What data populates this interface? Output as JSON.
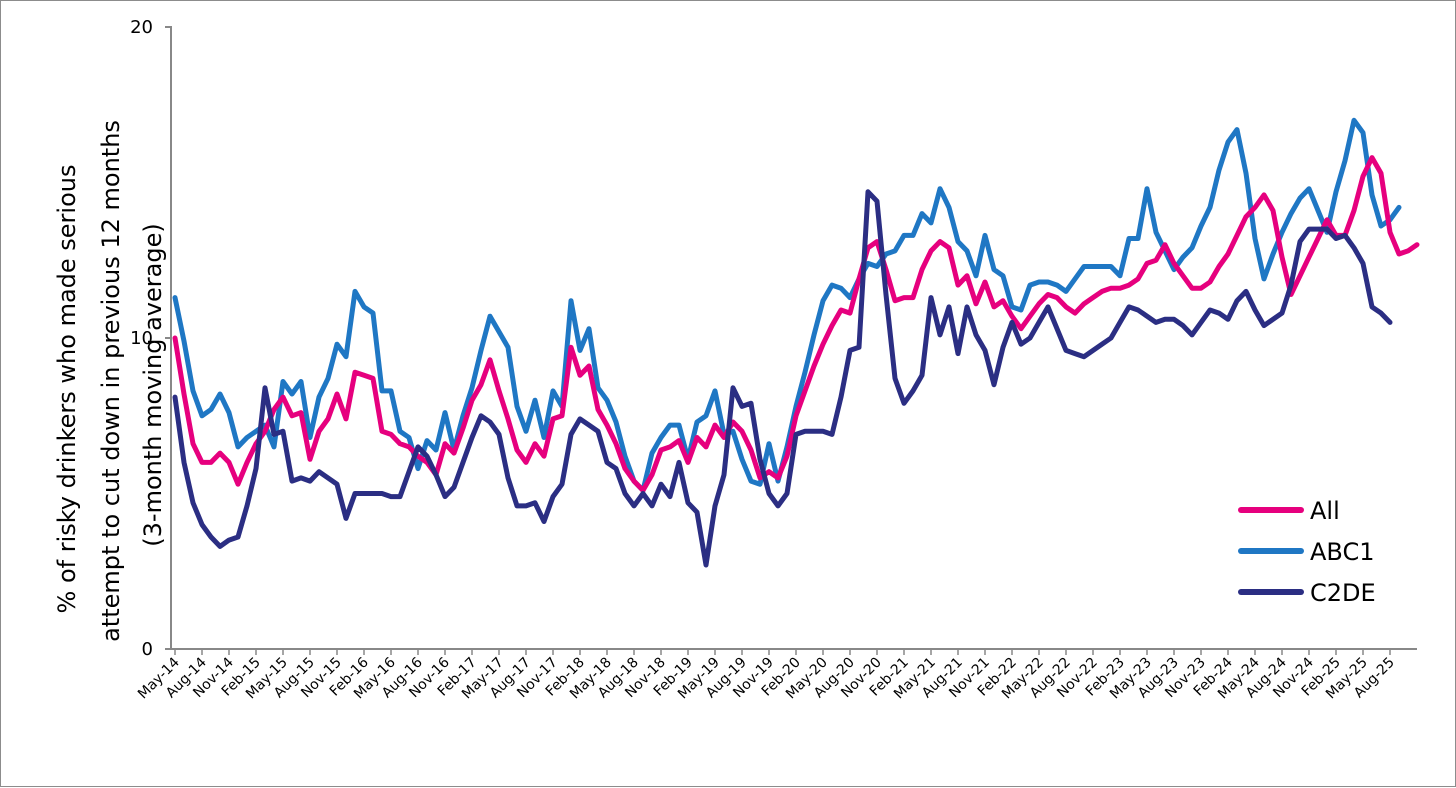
{
  "chart_data": {
    "type": "line",
    "title": "",
    "ylabel_lines": [
      "% of risky drinkers who made serious",
      "attempt to cut down in previous 12 months",
      "(3-month moving average)"
    ],
    "xlabel": "",
    "ylim": [
      0,
      20
    ],
    "yticks": [
      0,
      10,
      20
    ],
    "grid": false,
    "legend_position": "bottom-right",
    "x_tick_labels": [
      "May-14",
      "Aug-14",
      "Nov-14",
      "Feb-15",
      "May-15",
      "Aug-15",
      "Nov-15",
      "Feb-16",
      "May-16",
      "Aug-16",
      "Nov-16",
      "Feb-17",
      "May-17",
      "Aug-17",
      "Nov-17",
      "Feb-18",
      "May-18",
      "Aug-18",
      "Nov-18",
      "Feb-19",
      "May-19",
      "Aug-19",
      "Nov-19",
      "Feb-20",
      "May-20",
      "Aug-20",
      "Nov-20",
      "Feb-21",
      "May-21",
      "Aug-21",
      "Nov-21",
      "Feb-22",
      "May-22",
      "Aug-22",
      "Nov-22",
      "Feb-23",
      "May-23",
      "Aug-23",
      "Nov-23",
      "Feb-24",
      "May-24",
      "Aug-24",
      "Nov-24",
      "Feb-25",
      "May-25",
      "Aug-25"
    ],
    "x_start": "May-14",
    "x_interval": "month",
    "series": [
      {
        "name": "All",
        "color": "#e6007e",
        "values": [
          10.0,
          8.2,
          6.6,
          6.0,
          6.0,
          6.3,
          6.0,
          5.3,
          6.0,
          6.6,
          7.0,
          7.7,
          8.1,
          7.5,
          7.6,
          6.1,
          7.0,
          7.4,
          8.2,
          7.4,
          8.9,
          8.8,
          8.7,
          7.0,
          6.9,
          6.6,
          6.5,
          6.2,
          6.0,
          5.6,
          6.6,
          6.3,
          7.1,
          8.0,
          8.5,
          9.3,
          8.3,
          7.4,
          6.4,
          6.0,
          6.6,
          6.2,
          7.4,
          7.5,
          9.7,
          8.8,
          9.1,
          7.7,
          7.2,
          6.6,
          5.8,
          5.4,
          5.1,
          5.6,
          6.4,
          6.5,
          6.7,
          6.0,
          6.8,
          6.5,
          7.2,
          6.8,
          7.3,
          7.0,
          6.4,
          5.5,
          5.7,
          5.5,
          6.2,
          7.5,
          8.3,
          9.1,
          9.8,
          10.4,
          10.9,
          10.8,
          11.9,
          12.9,
          13.1,
          12.2,
          11.2,
          11.3,
          11.3,
          12.2,
          12.8,
          13.1,
          12.9,
          11.7,
          12.0,
          11.1,
          11.8,
          11.0,
          11.2,
          10.7,
          10.3,
          10.7,
          11.1,
          11.4,
          11.3,
          11.0,
          10.8,
          11.1,
          11.3,
          11.5,
          11.6,
          11.6,
          11.7,
          11.9,
          12.4,
          12.5,
          13.0,
          12.4,
          12.0,
          11.6,
          11.6,
          11.8,
          12.3,
          12.7,
          13.3,
          13.9,
          14.2,
          14.6,
          14.1,
          12.6,
          11.4,
          12.0,
          12.6,
          13.2,
          13.8,
          13.3,
          13.3,
          14.1,
          15.2,
          15.8,
          15.3,
          13.4,
          12.7,
          12.8,
          13.0
        ]
      },
      {
        "name": "ABC1",
        "color": "#1f77c4",
        "values": [
          11.3,
          9.9,
          8.3,
          7.5,
          7.7,
          8.2,
          7.6,
          6.5,
          6.8,
          7.0,
          7.2,
          6.5,
          8.6,
          8.2,
          8.6,
          6.8,
          8.1,
          8.7,
          9.8,
          9.4,
          11.5,
          11.0,
          10.8,
          8.3,
          8.3,
          7.0,
          6.8,
          5.8,
          6.7,
          6.4,
          7.6,
          6.4,
          7.5,
          8.4,
          9.6,
          10.7,
          10.2,
          9.7,
          7.8,
          7.0,
          8.0,
          6.8,
          8.3,
          7.8,
          11.2,
          9.6,
          10.3,
          8.4,
          8.0,
          7.3,
          6.2,
          5.4,
          5.1,
          6.3,
          6.8,
          7.2,
          7.2,
          6.1,
          7.3,
          7.5,
          8.3,
          6.9,
          7.0,
          6.1,
          5.4,
          5.3,
          6.6,
          5.4,
          6.5,
          7.8,
          8.9,
          10.1,
          11.2,
          11.7,
          11.6,
          11.3,
          11.9,
          12.4,
          12.3,
          12.7,
          12.8,
          13.3,
          13.3,
          14.0,
          13.7,
          14.8,
          14.2,
          13.1,
          12.8,
          12.0,
          13.3,
          12.2,
          12.0,
          11.0,
          10.9,
          11.7,
          11.8,
          11.8,
          11.7,
          11.5,
          11.9,
          12.3,
          12.3,
          12.3,
          12.3,
          12.0,
          13.2,
          13.2,
          14.8,
          13.4,
          12.8,
          12.2,
          12.6,
          12.9,
          13.6,
          14.2,
          15.4,
          16.3,
          16.7,
          15.3,
          13.2,
          11.9,
          12.7,
          13.4,
          14.0,
          14.5,
          14.8,
          14.1,
          13.4,
          14.7,
          15.7,
          17.0,
          16.6,
          14.6,
          13.6,
          13.8,
          14.2
        ]
      },
      {
        "name": "C2DE",
        "color": "#2b2e83",
        "values": [
          8.1,
          6.0,
          4.7,
          4.0,
          3.6,
          3.3,
          3.5,
          3.6,
          4.6,
          5.8,
          8.4,
          6.9,
          7.0,
          5.4,
          5.5,
          5.4,
          5.7,
          5.5,
          5.3,
          4.2,
          5.0,
          5.0,
          5.0,
          5.0,
          4.9,
          4.9,
          5.7,
          6.5,
          6.2,
          5.6,
          4.9,
          5.2,
          6.0,
          6.8,
          7.5,
          7.3,
          6.9,
          5.5,
          4.6,
          4.6,
          4.7,
          4.1,
          4.9,
          5.3,
          6.9,
          7.4,
          7.2,
          7.0,
          6.0,
          5.8,
          5.0,
          4.6,
          5.0,
          4.6,
          5.3,
          4.9,
          6.0,
          4.7,
          4.4,
          2.7,
          4.6,
          5.6,
          8.4,
          7.8,
          7.9,
          6.1,
          5.0,
          4.6,
          5.0,
          6.9,
          7.0,
          7.0,
          7.0,
          6.9,
          8.1,
          9.6,
          9.7,
          14.7,
          14.4,
          11.4,
          8.7,
          7.9,
          8.3,
          8.8,
          11.3,
          10.1,
          11.0,
          9.5,
          11.0,
          10.1,
          9.6,
          8.5,
          9.7,
          10.5,
          9.8,
          10.0,
          10.5,
          11.0,
          10.3,
          9.6,
          9.5,
          9.4,
          9.6,
          9.8,
          10.0,
          10.5,
          11.0,
          10.9,
          10.7,
          10.5,
          10.6,
          10.6,
          10.4,
          10.1,
          10.5,
          10.9,
          10.8,
          10.6,
          11.2,
          11.5,
          10.9,
          10.4,
          10.6,
          10.8,
          11.7,
          13.1,
          13.5,
          13.5,
          13.5,
          13.2,
          13.3,
          12.9,
          12.4,
          11.0,
          10.8,
          10.5
        ]
      }
    ]
  }
}
